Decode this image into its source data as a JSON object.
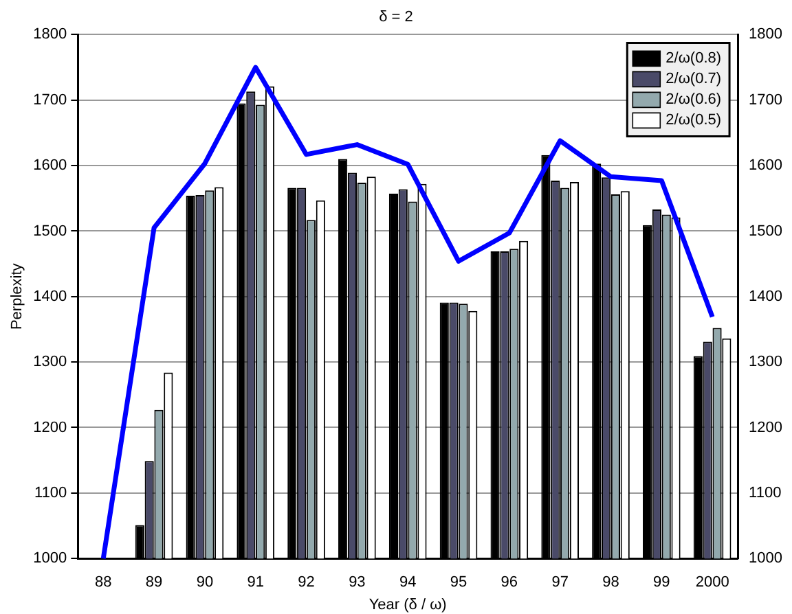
{
  "chart_data": {
    "type": "bar",
    "title": "δ = 2",
    "xlabel": "Year (δ / ω)",
    "ylabel": "Perplexity",
    "categories": [
      "88",
      "89",
      "90",
      "91",
      "92",
      "93",
      "94",
      "95",
      "96",
      "97",
      "98",
      "99",
      "2000"
    ],
    "series": [
      {
        "name": "2/ω(0.8)",
        "color": "#000000",
        "values": [
          null,
          1051,
          1554,
          1695,
          1566,
          1610,
          1557,
          1391,
          1469,
          1616,
          1603,
          1509,
          1309
        ]
      },
      {
        "name": "2/ω(0.7)",
        "color": "#4a4a68",
        "values": [
          null,
          1149,
          1555,
          1713,
          1566,
          1589,
          1564,
          1391,
          1469,
          1577,
          1582,
          1533,
          1331
        ]
      },
      {
        "name": "2/ω(0.6)",
        "color": "#93a9ad",
        "values": [
          null,
          1227,
          1562,
          1693,
          1517,
          1574,
          1545,
          1389,
          1473,
          1566,
          1556,
          1525,
          1352
        ]
      },
      {
        "name": "2/ω(0.5)",
        "color": "#ffffff",
        "values": [
          null,
          1284,
          1567,
          1721,
          1547,
          1583,
          1572,
          1378,
          1485,
          1575,
          1561,
          1521,
          1336
        ]
      },
      {
        "type": "line",
        "color": "#0000ff",
        "values": [
          1000,
          1505,
          1603,
          1750,
          1617,
          1632,
          1602,
          1454,
          1497,
          1638,
          1583,
          1577,
          1369
        ]
      }
    ],
    "ylim": [
      1000,
      1800
    ],
    "yticks": [
      1000,
      1100,
      1200,
      1300,
      1400,
      1500,
      1600,
      1700,
      1800
    ],
    "y2lim": [
      1000,
      1800
    ],
    "y2ticks": [
      1000,
      1100,
      1200,
      1300,
      1400,
      1500,
      1600,
      1700,
      1800
    ],
    "grid": "y",
    "legend": "top right",
    "marker": "none",
    "line_style": "solid"
  }
}
